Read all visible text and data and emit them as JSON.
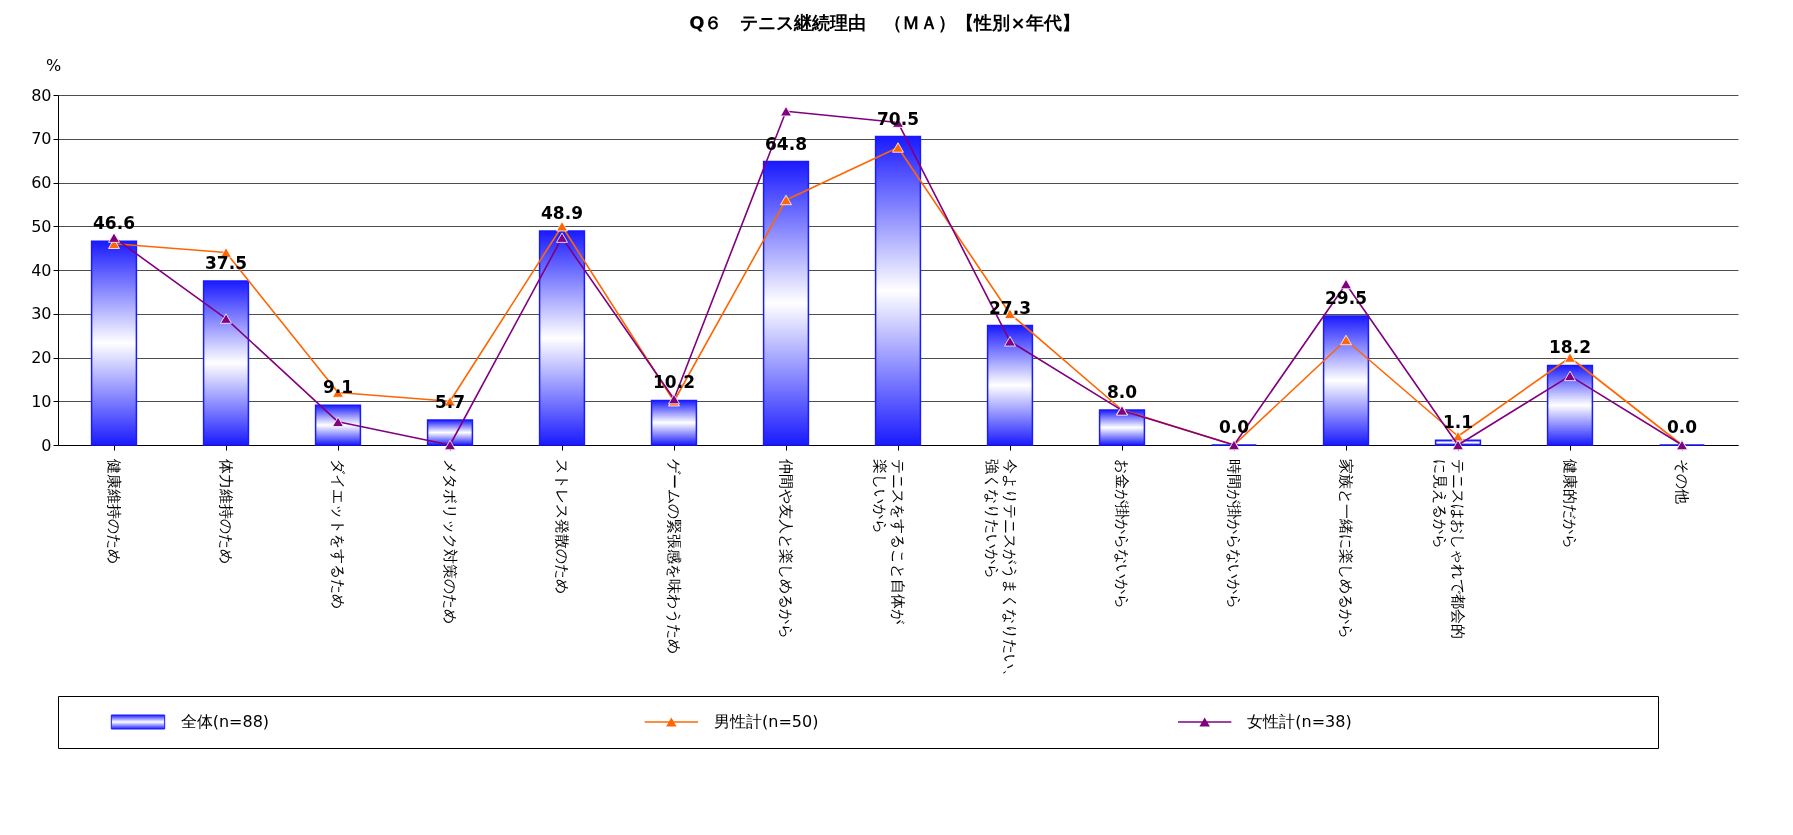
{
  "chart_data": {
    "type": "bar",
    "title": "Q６　テニス継続理由　（ＭＡ）【性別×年代】",
    "ylabel": "%",
    "categories": [
      "健康維持のため",
      "体力維持のため",
      "ダイエットをするため",
      "メタボリック対策のため",
      "ストレス発散のため",
      "ゲームの緊張感を味わうため",
      "仲間や友人と楽しめるから",
      "テニスをすること自体が楽しいから",
      "今よりテニスがうまくなりたい、強くなりたいから",
      "お金が掛からないから",
      "時間が掛からないから",
      "家族と一緒に楽しめるから",
      "テニスはおしゃれで都会的に見えるから",
      "健康的だから",
      "その他"
    ],
    "series": [
      {
        "name": "全体(n=88)",
        "color": "#1a1aff",
        "values": [
          46.6,
          37.5,
          9.1,
          5.7,
          48.9,
          10.2,
          64.8,
          70.5,
          27.3,
          8.0,
          0.0,
          29.5,
          1.1,
          18.2,
          0.0
        ],
        "value_labels": [
          "46.6",
          "37.5",
          "9.1",
          "5.7",
          "48.9",
          "10.2",
          "64.8",
          "70.5",
          "27.3",
          "8.0",
          "0.0",
          "29.5",
          "1.1",
          "18.2",
          "0.0"
        ]
      },
      {
        "name": "男性計(n=50)",
        "type": "line",
        "color": "#ff6600",
        "marker": "triangle",
        "values": [
          46,
          44,
          12,
          10,
          50,
          10,
          56,
          68,
          30,
          8,
          0,
          24,
          2,
          20,
          0
        ]
      },
      {
        "name": "女性計(n=38)",
        "type": "line",
        "color": "#800080",
        "marker": "triangle",
        "values": [
          47.4,
          28.9,
          5.3,
          0,
          47.4,
          10.5,
          76.3,
          73.7,
          23.7,
          7.9,
          0,
          36.8,
          0,
          15.8,
          0
        ]
      }
    ],
    "ylim": [
      0,
      80
    ],
    "yticks": [
      0,
      10,
      20,
      30,
      40,
      50,
      60,
      70,
      80
    ],
    "grid": "y",
    "legend": "bottom"
  }
}
